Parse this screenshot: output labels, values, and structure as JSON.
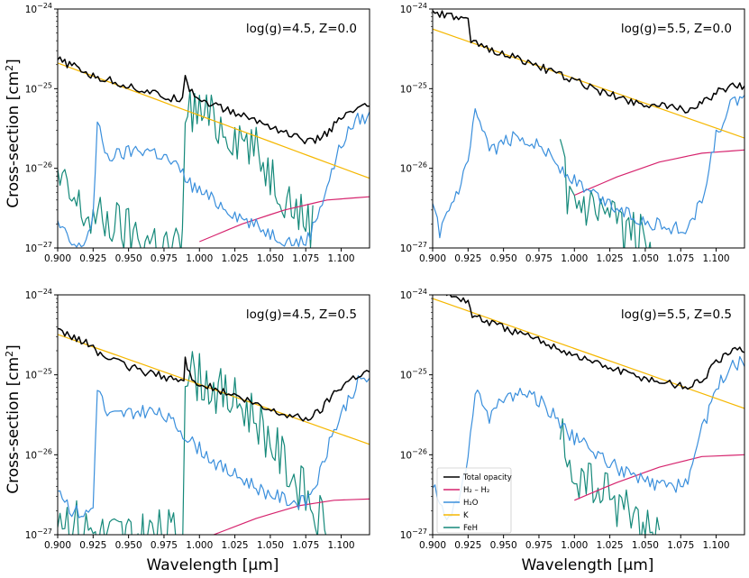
{
  "figure": {
    "ylabel_text": "Cross-section [cm",
    "ylabel_sup": "2",
    "ylabel_close": "]",
    "xlabel": "Wavelength [μm]"
  },
  "legend": [
    {
      "label": "Total opacity",
      "color": "#000000"
    },
    {
      "label": "H₂ – H₂",
      "color": "#d6246e"
    },
    {
      "label": "H₂O",
      "color": "#3a8fdc"
    },
    {
      "label": "K",
      "color": "#f5b700"
    },
    {
      "label": "FeH",
      "color": "#15897a"
    }
  ],
  "chart_data": [
    {
      "type": "line",
      "title": "",
      "annotation": "log(g)=4.5, Z=0.0",
      "xlabel": "Wavelength [μm]",
      "ylabel": "Cross-section [cm²]",
      "xlim": [
        0.9,
        1.12
      ],
      "ylim": [
        1e-27,
        1e-24
      ],
      "yscale": "log",
      "xticks": [
        "0.900",
        "0.925",
        "0.950",
        "0.975",
        "1.000",
        "1.025",
        "1.050",
        "1.075",
        "1.100"
      ],
      "yticks": [
        1e-27,
        1e-26,
        1e-25,
        1e-24
      ],
      "series": [
        {
          "name": "Total opacity",
          "color": "#000000",
          "x": [
            0.9,
            0.905,
            0.915,
            0.925,
            0.935,
            0.95,
            0.965,
            0.98,
            0.988,
            0.99,
            0.993,
            1.0,
            1.01,
            1.02,
            1.035,
            1.05,
            1.065,
            1.08,
            1.09,
            1.1,
            1.11,
            1.12
          ],
          "y": [
            2.3e-25,
            2.1e-25,
            1.8e-25,
            1.4e-25,
            1.3e-25,
            1.08e-25,
            9e-26,
            7.4e-26,
            7.8e-26,
            1.6e-25,
            1e-25,
            7.4e-26,
            6.3e-26,
            5.3e-26,
            4.3e-26,
            3.4e-26,
            2.6e-26,
            2.1e-26,
            2.8e-26,
            4.2e-26,
            5.4e-26,
            6e-26
          ]
        },
        {
          "name": "K",
          "color": "#f5b700",
          "x": [
            0.9,
            1.12
          ],
          "y": [
            2.1e-25,
            7.5e-27
          ]
        },
        {
          "name": "H₂O",
          "color": "#3a8fdc",
          "x": [
            0.9,
            0.905,
            0.91,
            0.915,
            0.92,
            0.925,
            0.928,
            0.935,
            0.945,
            0.955,
            0.965,
            0.975,
            0.985,
            0.995,
            1.005,
            1.015,
            1.025,
            1.035,
            1.045,
            1.055,
            1.065,
            1.075,
            1.08,
            1.09,
            1.1,
            1.11,
            1.12
          ],
          "y": [
            2e-27,
            1.5e-27,
            1.1e-27,
            1e-27,
            1.3e-27,
            2.5e-27,
            3.5e-26,
            1.4e-26,
            1.5e-26,
            1.7e-26,
            1.7e-26,
            1.4e-26,
            1e-26,
            6e-27,
            4.5e-27,
            3.5e-27,
            2.7e-27,
            2.1e-27,
            1.7e-27,
            1.4e-27,
            1.2e-27,
            1.2e-27,
            1.8e-27,
            6e-27,
            2e-26,
            4e-26,
            4.5e-26
          ]
        },
        {
          "name": "H₂ – H₂",
          "color": "#d6246e",
          "x": [
            1.0,
            1.03,
            1.06,
            1.09,
            1.12
          ],
          "y": [
            1.2e-27,
            2e-27,
            3e-27,
            4e-27,
            4.4e-27
          ]
        },
        {
          "name": "FeH",
          "color": "#15897a",
          "x": [
            0.9,
            0.91,
            0.92,
            0.93,
            0.94,
            0.95,
            0.96,
            0.97,
            0.98,
            0.987,
            0.988,
            0.99,
            1.0,
            1.01,
            1.02,
            1.03,
            1.04,
            1.05,
            1.06,
            1.07,
            1.08
          ],
          "y": [
            7e-27,
            4e-27,
            2.5e-27,
            2.2e-27,
            2e-27,
            1.6e-27,
            1.3e-27,
            1.2e-27,
            1e-27,
            1e-27,
            1e-27,
            6e-26,
            5e-26,
            4e-26,
            3e-26,
            2.5e-26,
            1.6e-26,
            9e-27,
            5e-27,
            2.8e-27,
            2e-27
          ]
        }
      ]
    },
    {
      "type": "line",
      "title": "",
      "annotation": "log(g)=5.5, Z=0.0",
      "xlabel": "Wavelength [μm]",
      "ylabel": "",
      "xlim": [
        0.9,
        1.12
      ],
      "ylim": [
        1e-27,
        1e-24
      ],
      "yscale": "log",
      "xticks": [
        "0.900",
        "0.925",
        "0.950",
        "0.975",
        "1.000",
        "1.025",
        "1.050",
        "1.075",
        "1.100"
      ],
      "yticks": [
        1e-27,
        1e-26,
        1e-25,
        1e-24
      ],
      "series": [
        {
          "name": "Total opacity",
          "color": "#000000",
          "x": [
            0.9,
            0.91,
            0.92,
            0.925,
            0.927,
            0.94,
            0.96,
            0.98,
            1.0,
            1.02,
            1.04,
            1.06,
            1.08,
            1.09,
            1.1,
            1.11,
            1.12
          ],
          "y": [
            9e-25,
            8.2e-25,
            7.5e-25,
            7e-25,
            3.8e-25,
            3.2e-25,
            2.4e-25,
            1.75e-25,
            1.25e-25,
            9e-26,
            7e-26,
            6e-26,
            5.5e-26,
            6.5e-26,
            9e-26,
            1.05e-25,
            1.1e-25
          ]
        },
        {
          "name": "K",
          "color": "#f5b700",
          "x": [
            0.9,
            1.12
          ],
          "y": [
            5.6e-25,
            2.4e-26
          ]
        },
        {
          "name": "H₂O",
          "color": "#3a8fdc",
          "x": [
            0.9,
            0.905,
            0.91,
            0.92,
            0.925,
            0.93,
            0.94,
            0.95,
            0.96,
            0.97,
            0.98,
            0.99,
            1.0,
            1.01,
            1.02,
            1.03,
            1.04,
            1.05,
            1.06,
            1.07,
            1.08,
            1.09,
            1.1,
            1.11,
            1.12
          ],
          "y": [
            3e-27,
            1.6e-27,
            2.5e-27,
            6e-27,
            1.2e-26,
            5e-26,
            1.6e-26,
            2.1e-26,
            2.5e-26,
            2.2e-26,
            1.7e-26,
            1e-26,
            7e-27,
            5e-27,
            4e-27,
            3.2e-27,
            2.6e-27,
            2.2e-27,
            1.9e-27,
            1.8e-27,
            1.7e-27,
            4e-27,
            2.5e-26,
            6e-26,
            8e-26
          ]
        },
        {
          "name": "H₂ – H₂",
          "color": "#d6246e",
          "x": [
            1.0,
            1.03,
            1.06,
            1.09,
            1.12
          ],
          "y": [
            4.6e-27,
            7.8e-27,
            1.2e-26,
            1.55e-26,
            1.7e-26
          ]
        },
        {
          "name": "FeH",
          "color": "#15897a",
          "x": [
            0.99,
            0.995,
            1.0,
            1.01,
            1.02,
            1.03,
            1.04,
            1.05,
            1.06
          ],
          "y": [
            1.2e-26,
            5e-27,
            3e-27,
            2.6e-27,
            2.2e-27,
            1.8e-27,
            1.5e-27,
            1.2e-27,
            1e-27
          ]
        }
      ]
    },
    {
      "type": "line",
      "title": "",
      "annotation": "log(g)=4.5, Z=0.5",
      "xlabel": "Wavelength [μm]",
      "ylabel": "Cross-section [cm²]",
      "xlim": [
        0.9,
        1.12
      ],
      "ylim": [
        1e-27,
        1e-24
      ],
      "yscale": "log",
      "xticks": [
        "0.900",
        "0.925",
        "0.950",
        "0.975",
        "1.000",
        "1.025",
        "1.050",
        "1.075",
        "1.100"
      ],
      "yticks": [
        1e-27,
        1e-26,
        1e-25,
        1e-24
      ],
      "series": [
        {
          "name": "Total opacity",
          "color": "#000000",
          "x": [
            0.9,
            0.91,
            0.92,
            0.925,
            0.93,
            0.945,
            0.96,
            0.975,
            0.985,
            0.989,
            0.99,
            0.993,
            1.0,
            1.015,
            1.03,
            1.045,
            1.06,
            1.075,
            1.085,
            1.095,
            1.105,
            1.112,
            1.12
          ],
          "y": [
            3.4e-25,
            3e-25,
            2.5e-25,
            2.2e-25,
            1.8e-25,
            1.35e-25,
            1.1e-25,
            9.5e-26,
            8.5e-26,
            8.2e-26,
            1.6e-25,
            1e-25,
            7.8e-26,
            6.2e-26,
            5e-26,
            3.8e-26,
            3.2e-26,
            2.8e-26,
            3.5e-26,
            6e-26,
            8.5e-26,
            1e-25,
            1.1e-25
          ]
        },
        {
          "name": "K",
          "color": "#f5b700",
          "x": [
            0.9,
            1.12
          ],
          "y": [
            3.2e-25,
            1.35e-26
          ]
        },
        {
          "name": "H₂O",
          "color": "#3a8fdc",
          "x": [
            0.9,
            0.91,
            0.92,
            0.925,
            0.928,
            0.935,
            0.945,
            0.955,
            0.965,
            0.975,
            0.985,
            0.995,
            1.005,
            1.015,
            1.025,
            1.035,
            1.045,
            1.055,
            1.065,
            1.075,
            1.085,
            1.095,
            1.105,
            1.112,
            1.12
          ],
          "y": [
            4e-27,
            2e-27,
            1.8e-27,
            2.2e-27,
            7.5e-26,
            3e-26,
            3.2e-26,
            3.5e-26,
            3.5e-26,
            3e-26,
            2.2e-26,
            1.4e-26,
            1e-26,
            7e-27,
            5.5e-27,
            4.5e-27,
            3.5e-27,
            3e-27,
            2.6e-27,
            2.5e-27,
            6e-27,
            2e-26,
            5e-26,
            8e-26,
            9e-26
          ]
        },
        {
          "name": "H₂ – H₂",
          "color": "#d6246e",
          "x": [
            1.01,
            1.04,
            1.07,
            1.095,
            1.12
          ],
          "y": [
            1e-27,
            1.6e-27,
            2.3e-27,
            2.7e-27,
            2.8e-27
          ]
        },
        {
          "name": "FeH",
          "color": "#15897a",
          "x": [
            0.9,
            0.91,
            0.92,
            0.93,
            0.94,
            0.95,
            0.96,
            0.97,
            0.98,
            0.987,
            0.988,
            0.99,
            1.0,
            1.01,
            1.02,
            1.03,
            1.04,
            1.05,
            1.06,
            1.07,
            1.08,
            1.09
          ],
          "y": [
            2e-27,
            1.5e-27,
            1.2e-27,
            1e-27,
            1e-27,
            1e-27,
            1e-27,
            1e-27,
            1e-27,
            1e-27,
            1e-27,
            1.2e-25,
            9e-26,
            7e-26,
            5e-26,
            4e-26,
            3e-26,
            1.5e-26,
            8e-27,
            4e-27,
            2.2e-27,
            1.5e-27
          ]
        }
      ]
    },
    {
      "type": "line",
      "title": "",
      "annotation": "log(g)=5.5, Z=0.5",
      "xlabel": "Wavelength [μm]",
      "ylabel": "",
      "xlim": [
        0.9,
        1.12
      ],
      "ylim": [
        1e-27,
        1e-24
      ],
      "yscale": "log",
      "xticks": [
        "0.900",
        "0.925",
        "0.950",
        "0.975",
        "1.000",
        "1.025",
        "1.050",
        "1.075",
        "1.100"
      ],
      "yticks": [
        1e-27,
        1e-26,
        1e-25,
        1e-24
      ],
      "series": [
        {
          "name": "Total opacity",
          "color": "#000000",
          "x": [
            0.9,
            0.91,
            0.92,
            0.925,
            0.928,
            0.94,
            0.96,
            0.98,
            1.0,
            1.02,
            1.04,
            1.06,
            1.08,
            1.09,
            1.1,
            1.11,
            1.12
          ],
          "y": [
            1.2e-24,
            1e-24,
            9e-25,
            8.2e-25,
            5.5e-25,
            4.5e-25,
            3.3e-25,
            2.5e-25,
            1.75e-25,
            1.3e-25,
            1e-25,
            8.2e-26,
            7e-26,
            8.5e-26,
            1.4e-25,
            1.9e-25,
            2.1e-25
          ]
        },
        {
          "name": "K",
          "color": "#f5b700",
          "x": [
            0.9,
            1.12
          ],
          "y": [
            9e-25,
            3.8e-26
          ]
        },
        {
          "name": "H₂O",
          "color": "#3a8fdc",
          "x": [
            0.9,
            0.91,
            0.92,
            0.925,
            0.93,
            0.94,
            0.95,
            0.96,
            0.97,
            0.98,
            0.99,
            1.0,
            1.01,
            1.02,
            1.03,
            1.04,
            1.05,
            1.06,
            1.07,
            1.08,
            1.09,
            1.1,
            1.11,
            1.12
          ],
          "y": [
            4e-27,
            1.6e-27,
            3e-27,
            1e-26,
            6e-26,
            3e-26,
            5e-26,
            6e-26,
            5.5e-26,
            4e-26,
            2.5e-26,
            1.6e-26,
            1.2e-26,
            9e-27,
            7e-27,
            5.5e-27,
            4.5e-27,
            4e-27,
            4e-27,
            5e-27,
            2e-26,
            7e-26,
            1.2e-25,
            1.5e-25
          ]
        },
        {
          "name": "H₂ – H₂",
          "color": "#d6246e",
          "x": [
            1.0,
            1.03,
            1.06,
            1.09,
            1.12
          ],
          "y": [
            2.7e-27,
            4.5e-27,
            7e-27,
            9.5e-27,
            1e-26
          ]
        },
        {
          "name": "FeH",
          "color": "#15897a",
          "x": [
            0.99,
            0.995,
            1.0,
            1.01,
            1.02,
            1.03,
            1.04,
            1.05,
            1.06
          ],
          "y": [
            1.8e-26,
            8e-27,
            5e-27,
            4e-27,
            3.2e-27,
            2.5e-27,
            1.8e-27,
            1.3e-27,
            1e-27
          ]
        }
      ]
    }
  ]
}
